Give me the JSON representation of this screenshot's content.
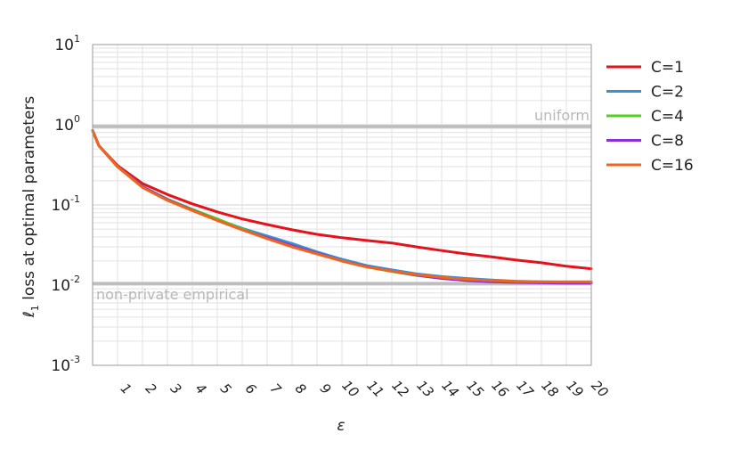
{
  "chart_data": {
    "type": "line",
    "xlabel": "ε",
    "ylabel_sym": "ℓ",
    "ylabel_sub": "1",
    "ylabel_rest": " loss at optimal parameters",
    "xlim": [
      0,
      20
    ],
    "ylim": [
      0.001,
      10
    ],
    "yscale": "log",
    "grid": true,
    "legend_position": "right",
    "x_ticks": [
      "1",
      "2",
      "3",
      "4",
      "5",
      "6",
      "7",
      "8",
      "9",
      "10",
      "11",
      "12",
      "13",
      "14",
      "15",
      "16",
      "17",
      "18",
      "19",
      "20"
    ],
    "y_ticks": [
      {
        "base": "10",
        "exp": "1",
        "value": 10
      },
      {
        "base": "10",
        "exp": "0",
        "value": 1
      },
      {
        "base": "10",
        "exp": "-1",
        "value": 0.1
      },
      {
        "base": "10",
        "exp": "-2",
        "value": 0.01
      },
      {
        "base": "10",
        "exp": "-3",
        "value": 0.001
      }
    ],
    "reference_lines": [
      {
        "label": "uniform",
        "value": 0.95,
        "color": "#bdbdbd"
      },
      {
        "label": "non-private empirical",
        "value": 0.0105,
        "color": "#bdbdbd"
      }
    ],
    "x": [
      0,
      0.25,
      1,
      2,
      3,
      4,
      5,
      6,
      7,
      8,
      9,
      10,
      11,
      12,
      13,
      14,
      15,
      16,
      17,
      18,
      19,
      20
    ],
    "series": [
      {
        "name": "C=1",
        "color": "#e3121b",
        "values": [
          0.85,
          0.55,
          0.31,
          0.185,
          0.135,
          0.103,
          0.082,
          0.067,
          0.057,
          0.049,
          0.043,
          0.039,
          0.036,
          0.0335,
          0.03,
          0.027,
          0.0245,
          0.0225,
          0.0205,
          0.019,
          0.0172,
          0.016
        ]
      },
      {
        "name": "C=2",
        "color": "#3a8fd8",
        "values": [
          0.85,
          0.55,
          0.3,
          0.17,
          0.118,
          0.088,
          0.066,
          0.051,
          0.041,
          0.033,
          0.026,
          0.021,
          0.0175,
          0.0155,
          0.0138,
          0.0128,
          0.0121,
          0.0116,
          0.0112,
          0.011,
          0.0109,
          0.0108
        ]
      },
      {
        "name": "C=4",
        "color": "#4fd21a",
        "values": [
          0.85,
          0.55,
          0.3,
          0.168,
          0.117,
          0.088,
          0.067,
          0.05,
          0.039,
          0.031,
          0.025,
          0.02,
          0.0168,
          0.0148,
          0.0132,
          0.0122,
          0.0116,
          0.0112,
          0.011,
          0.0108,
          0.0107,
          0.0107
        ]
      },
      {
        "name": "C=8",
        "color": "#8c2fd8",
        "values": [
          0.85,
          0.55,
          0.3,
          0.168,
          0.116,
          0.086,
          0.064,
          0.049,
          0.039,
          0.031,
          0.025,
          0.02,
          0.017,
          0.015,
          0.0133,
          0.0121,
          0.0114,
          0.011,
          0.0108,
          0.0107,
          0.0106,
          0.0106
        ]
      },
      {
        "name": "C=16",
        "color": "#f0641e",
        "values": [
          0.85,
          0.55,
          0.3,
          0.165,
          0.114,
          0.085,
          0.064,
          0.049,
          0.038,
          0.03,
          0.0245,
          0.02,
          0.0168,
          0.015,
          0.0135,
          0.0125,
          0.0118,
          0.0114,
          0.0111,
          0.011,
          0.011,
          0.011
        ]
      }
    ]
  }
}
